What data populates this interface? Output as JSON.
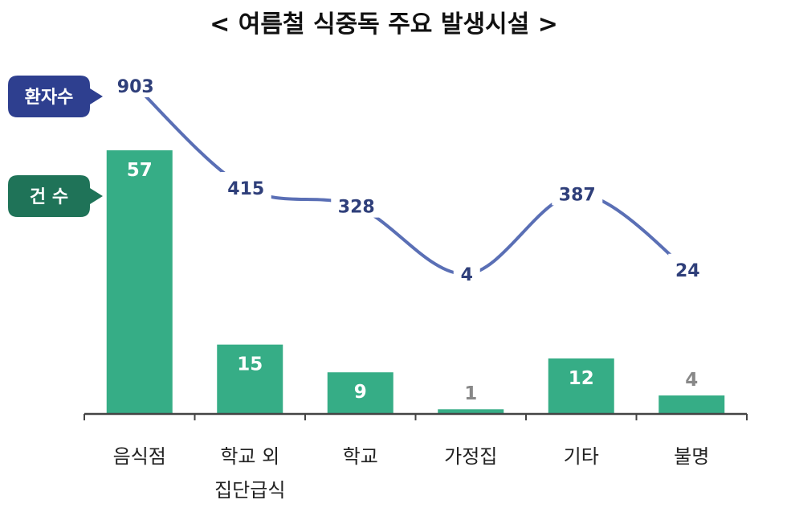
{
  "chart_data": {
    "type": "bar",
    "title": "< 여름철 식중독 주요 발생시설 >",
    "categories": [
      [
        "음식점"
      ],
      [
        "학교 외",
        "집단급식"
      ],
      [
        "학교"
      ],
      [
        "가정집"
      ],
      [
        "기타"
      ],
      [
        "불명"
      ]
    ],
    "series": [
      {
        "name": "건 수",
        "type": "bar",
        "values": [
          57,
          15,
          9,
          1,
          12,
          4
        ]
      },
      {
        "name": "환자수",
        "type": "line",
        "values": [
          903,
          415,
          328,
          4,
          387,
          24
        ]
      }
    ],
    "colors": {
      "bar": "#36ad86",
      "line": "#5a6fb5",
      "patients_tag": "#2e3f8f",
      "cases_tag": "#1f7358",
      "count_label_inside": "#ffffff",
      "count_label_outside": "#888888",
      "patient_label": "#2f3f7a"
    }
  }
}
